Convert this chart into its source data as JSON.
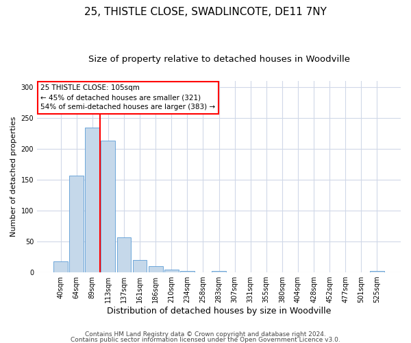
{
  "title1": "25, THISTLE CLOSE, SWADLINCOTE, DE11 7NY",
  "title2": "Size of property relative to detached houses in Woodville",
  "xlabel": "Distribution of detached houses by size in Woodville",
  "ylabel": "Number of detached properties",
  "bar_labels": [
    "40sqm",
    "64sqm",
    "89sqm",
    "113sqm",
    "137sqm",
    "161sqm",
    "186sqm",
    "210sqm",
    "234sqm",
    "258sqm",
    "283sqm",
    "307sqm",
    "331sqm",
    "355sqm",
    "380sqm",
    "404sqm",
    "428sqm",
    "452sqm",
    "477sqm",
    "501sqm",
    "525sqm"
  ],
  "bar_heights": [
    18,
    157,
    234,
    213,
    57,
    20,
    10,
    4,
    2,
    0,
    2,
    0,
    0,
    0,
    0,
    0,
    0,
    0,
    0,
    0,
    2
  ],
  "bar_color": "#c5d8ea",
  "bar_edge_color": "#5b9bd5",
  "ylim": [
    0,
    310
  ],
  "yticks": [
    0,
    50,
    100,
    150,
    200,
    250,
    300
  ],
  "annotation_line1": "25 THISTLE CLOSE: 105sqm",
  "annotation_line2": "← 45% of detached houses are smaller (321)",
  "annotation_line3": "54% of semi-detached houses are larger (383) →",
  "footnote1": "Contains HM Land Registry data © Crown copyright and database right 2024.",
  "footnote2": "Contains public sector information licensed under the Open Government Licence v3.0.",
  "bg_color": "#ffffff",
  "grid_color": "#d0d8e8",
  "title1_fontsize": 11,
  "title2_fontsize": 9.5,
  "xlabel_fontsize": 9,
  "ylabel_fontsize": 8,
  "annotation_fontsize": 7.5,
  "tick_fontsize": 7,
  "footnote_fontsize": 6.5,
  "red_line_index": 2.5
}
